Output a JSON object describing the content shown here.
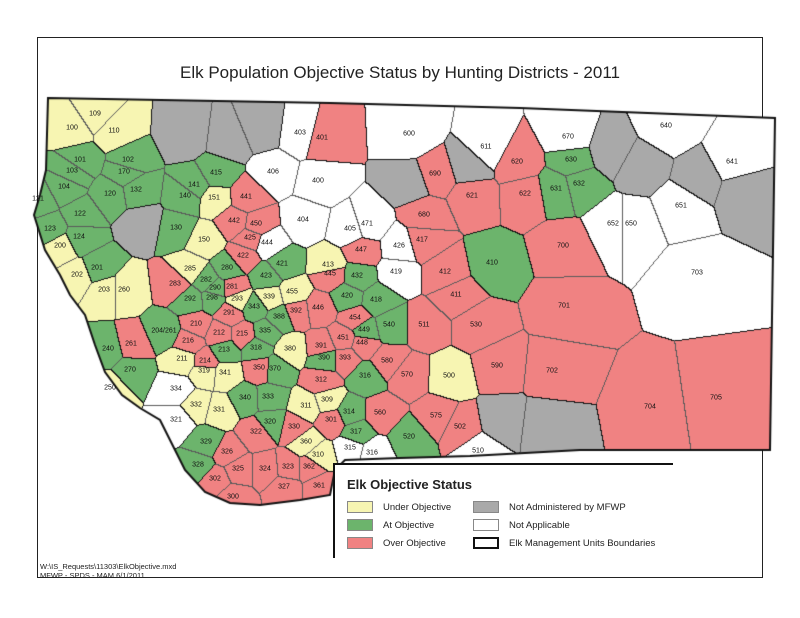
{
  "title": "Elk Population Objective Status by Hunting Districts - 2011",
  "colors": {
    "under": "#f7f5b2",
    "at": "#6cb46c",
    "over": "#f08282",
    "na_mfwp": "#a9a9a9",
    "not_applicable": "#ffffff"
  },
  "legend": {
    "title": "Elk Objective Status",
    "items": [
      {
        "key": "under",
        "label": "Under Objective"
      },
      {
        "key": "at",
        "label": "At Objective"
      },
      {
        "key": "over",
        "label": "Over Objective"
      },
      {
        "key": "na_mfwp",
        "label": "Not Administered by MFWP"
      },
      {
        "key": "not_applicable",
        "label": "Not Applicable"
      },
      {
        "key": "boundary",
        "label": "Elk Management Units Boundaries"
      }
    ]
  },
  "footer": {
    "line1": "W:\\IS_Requests\\11303\\ElkObjective.mxd",
    "line2": "MFWP - SPDS - MAM 6/1/2011"
  },
  "districts": [
    {
      "id": "100",
      "status": "under"
    },
    {
      "id": "109",
      "status": "under"
    },
    {
      "id": "110",
      "status": "under"
    },
    {
      "id": "101",
      "status": "at"
    },
    {
      "id": "102",
      "status": "at"
    },
    {
      "id": "103",
      "status": "at"
    },
    {
      "id": "104",
      "status": "at"
    },
    {
      "id": "170",
      "status": "at"
    },
    {
      "id": "121",
      "status": "at"
    },
    {
      "id": "120",
      "status": "at"
    },
    {
      "id": "132",
      "status": "at"
    },
    {
      "id": "122",
      "status": "at"
    },
    {
      "id": "123",
      "status": "at"
    },
    {
      "id": "124",
      "status": "at"
    },
    {
      "id": "200",
      "status": "under"
    },
    {
      "id": "201",
      "status": "at"
    },
    {
      "id": "202",
      "status": "under"
    },
    {
      "id": "203",
      "status": "under"
    },
    {
      "id": "260",
      "status": "under"
    },
    {
      "id": "141",
      "status": "at"
    },
    {
      "id": "140",
      "status": "at"
    },
    {
      "id": "415",
      "status": "at"
    },
    {
      "id": "151",
      "status": "under"
    },
    {
      "id": "130",
      "status": "at"
    },
    {
      "id": "150",
      "status": "under"
    },
    {
      "id": "441",
      "status": "over"
    },
    {
      "id": "442",
      "status": "over"
    },
    {
      "id": "450",
      "status": "over"
    },
    {
      "id": "425",
      "status": "over"
    },
    {
      "id": "422",
      "status": "over"
    },
    {
      "id": "444",
      "status": "not_applicable"
    },
    {
      "id": "285",
      "status": "under"
    },
    {
      "id": "280",
      "status": "at"
    },
    {
      "id": "423",
      "status": "at"
    },
    {
      "id": "421",
      "status": "at"
    },
    {
      "id": "283",
      "status": "over"
    },
    {
      "id": "290",
      "status": "at"
    },
    {
      "id": "281",
      "status": "over"
    },
    {
      "id": "282",
      "status": "at"
    },
    {
      "id": "298",
      "status": "at"
    },
    {
      "id": "292",
      "status": "at"
    },
    {
      "id": "293",
      "status": "under"
    },
    {
      "id": "339",
      "status": "under"
    },
    {
      "id": "343",
      "status": "at"
    },
    {
      "id": "455",
      "status": "under"
    },
    {
      "id": "446",
      "status": "over"
    },
    {
      "id": "392",
      "status": "over"
    },
    {
      "id": "388",
      "status": "at"
    },
    {
      "id": "445",
      "status": "over"
    },
    {
      "id": "413",
      "status": "under"
    },
    {
      "id": "432",
      "status": "at"
    },
    {
      "id": "420",
      "status": "at"
    },
    {
      "id": "418",
      "status": "at"
    },
    {
      "id": "419",
      "status": "not_applicable"
    },
    {
      "id": "449",
      "status": "at"
    },
    {
      "id": "454",
      "status": "over"
    },
    {
      "id": "540",
      "status": "at"
    },
    {
      "id": "448",
      "status": "over"
    },
    {
      "id": "451",
      "status": "over"
    },
    {
      "id": "410",
      "status": "at"
    },
    {
      "id": "412",
      "status": "over"
    },
    {
      "id": "411",
      "status": "over"
    },
    {
      "id": "511",
      "status": "over"
    },
    {
      "id": "530",
      "status": "over"
    },
    {
      "id": "204/261",
      "status": "at"
    },
    {
      "id": "210",
      "status": "over"
    },
    {
      "id": "216",
      "status": "over"
    },
    {
      "id": "291",
      "status": "over"
    },
    {
      "id": "212",
      "status": "over"
    },
    {
      "id": "215",
      "status": "over"
    },
    {
      "id": "335",
      "status": "at"
    },
    {
      "id": "261",
      "status": "over"
    },
    {
      "id": "240",
      "status": "at"
    },
    {
      "id": "211",
      "status": "under"
    },
    {
      "id": "214",
      "status": "over"
    },
    {
      "id": "213",
      "status": "at"
    },
    {
      "id": "318",
      "status": "at"
    },
    {
      "id": "380",
      "status": "under"
    },
    {
      "id": "319",
      "status": "under"
    },
    {
      "id": "341",
      "status": "under"
    },
    {
      "id": "350",
      "status": "over"
    },
    {
      "id": "370",
      "status": "at"
    },
    {
      "id": "391",
      "status": "over"
    },
    {
      "id": "390",
      "status": "at"
    },
    {
      "id": "393",
      "status": "over"
    },
    {
      "id": "316",
      "status": "at"
    },
    {
      "id": "580",
      "status": "over"
    },
    {
      "id": "570",
      "status": "over"
    },
    {
      "id": "500",
      "status": "under"
    },
    {
      "id": "590",
      "status": "over"
    },
    {
      "id": "270",
      "status": "at"
    },
    {
      "id": "250",
      "status": "under"
    },
    {
      "id": "334",
      "status": "not_applicable"
    },
    {
      "id": "312",
      "status": "over"
    },
    {
      "id": "332",
      "status": "under"
    },
    {
      "id": "331",
      "status": "under"
    },
    {
      "id": "340",
      "status": "at"
    },
    {
      "id": "333",
      "status": "at"
    },
    {
      "id": "311",
      "status": "under"
    },
    {
      "id": "309",
      "status": "under"
    },
    {
      "id": "301",
      "status": "over"
    },
    {
      "id": "321",
      "status": "not_applicable"
    },
    {
      "id": "314",
      "status": "at"
    },
    {
      "id": "560",
      "status": "over"
    },
    {
      "id": "575",
      "status": "over"
    },
    {
      "id": "502",
      "status": "over"
    },
    {
      "id": "329",
      "status": "at"
    },
    {
      "id": "322",
      "status": "over"
    },
    {
      "id": "320",
      "status": "at"
    },
    {
      "id": "330",
      "status": "over"
    },
    {
      "id": "360",
      "status": "under"
    },
    {
      "id": "317",
      "status": "at"
    },
    {
      "id": "520",
      "status": "at"
    },
    {
      "id": "315",
      "status": "not_applicable"
    },
    {
      "id": "316 ",
      "status": "not_applicable"
    },
    {
      "id": "510",
      "status": "not_applicable"
    },
    {
      "id": "328",
      "status": "at"
    },
    {
      "id": "326",
      "status": "over"
    },
    {
      "id": "310",
      "status": "under"
    },
    {
      "id": "325",
      "status": "over"
    },
    {
      "id": "324",
      "status": "over"
    },
    {
      "id": "323",
      "status": "over"
    },
    {
      "id": "362",
      "status": "over"
    },
    {
      "id": "302",
      "status": "over"
    },
    {
      "id": "327",
      "status": "over"
    },
    {
      "id": "361",
      "status": "over"
    },
    {
      "id": "300",
      "status": "over"
    },
    {
      "id": "403",
      "status": "not_applicable"
    },
    {
      "id": "401",
      "status": "over"
    },
    {
      "id": "600",
      "status": "not_applicable"
    },
    {
      "id": "670",
      "status": "not_applicable"
    },
    {
      "id": "640",
      "status": "not_applicable"
    },
    {
      "id": "611",
      "status": "not_applicable"
    },
    {
      "id": "641",
      "status": "not_applicable"
    },
    {
      "id": "406",
      "status": "not_applicable"
    },
    {
      "id": "400",
      "status": "not_applicable"
    },
    {
      "id": "690",
      "status": "over"
    },
    {
      "id": "620",
      "status": "over"
    },
    {
      "id": "630",
      "status": "at"
    },
    {
      "id": "632",
      "status": "at"
    },
    {
      "id": "631",
      "status": "at"
    },
    {
      "id": "622",
      "status": "over"
    },
    {
      "id": "621",
      "status": "over"
    },
    {
      "id": "680",
      "status": "over"
    },
    {
      "id": "404",
      "status": "not_applicable"
    },
    {
      "id": "405",
      "status": "not_applicable"
    },
    {
      "id": "471",
      "status": "not_applicable"
    },
    {
      "id": "417",
      "status": "over"
    },
    {
      "id": "426",
      "status": "not_applicable"
    },
    {
      "id": "447",
      "status": "over"
    },
    {
      "id": "650",
      "status": "not_applicable"
    },
    {
      "id": "652",
      "status": "not_applicable"
    },
    {
      "id": "651",
      "status": "not_applicable"
    },
    {
      "id": "700",
      "status": "over"
    },
    {
      "id": "703",
      "status": "not_applicable"
    },
    {
      "id": "701",
      "status": "over"
    },
    {
      "id": "702",
      "status": "over"
    },
    {
      "id": "704",
      "status": "over"
    },
    {
      "id": "705",
      "status": "over"
    }
  ]
}
